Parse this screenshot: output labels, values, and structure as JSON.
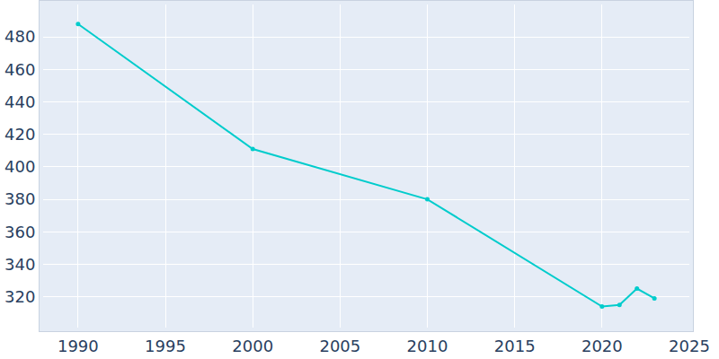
{
  "chart_data": {
    "type": "line",
    "x": [
      1990,
      2000,
      2010,
      2020,
      2021,
      2022,
      2023
    ],
    "values": [
      488,
      411,
      380,
      314,
      315,
      325,
      319
    ],
    "color": "#00cccc",
    "marker": "circle",
    "xlim": [
      1988,
      2025
    ],
    "xticks": [
      1990,
      1995,
      2000,
      2005,
      2010,
      2015,
      2020,
      2025
    ],
    "ylim": [
      301,
      500
    ],
    "yticks": [
      320,
      340,
      360,
      380,
      400,
      420,
      440,
      460,
      480
    ],
    "grid": true
  }
}
